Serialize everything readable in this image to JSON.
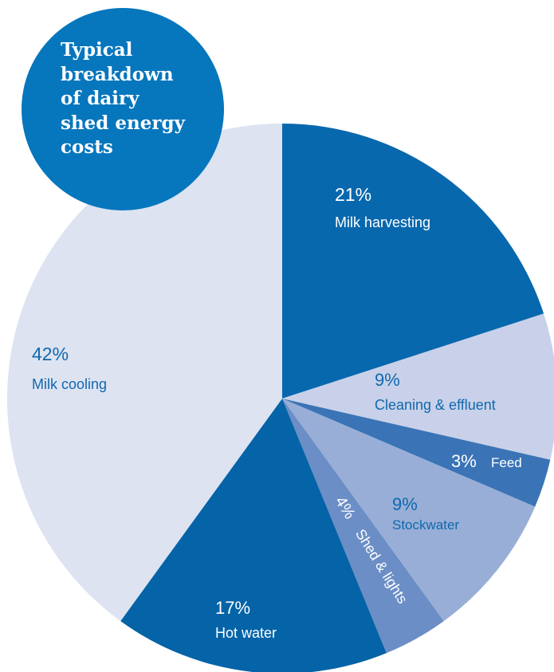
{
  "chart_data": {
    "type": "pie",
    "title": "Typical\nbreakdown\nof dairy\nshed energy\ncosts",
    "slices": [
      {
        "pct": "21%",
        "value": 21,
        "label": "Milk harvesting",
        "color": "#0868ae",
        "text_color": "#ffffff"
      },
      {
        "pct": "9%",
        "value": 9,
        "label": "Cleaning & effluent",
        "color": "#c8d1e9",
        "text_color": "#1168ad"
      },
      {
        "pct": "3%",
        "value": 3,
        "label": "Feed",
        "color": "#3a74b6",
        "text_color": "#ffffff"
      },
      {
        "pct": "9%",
        "value": 9,
        "label": "Stockwater",
        "color": "#98aed6",
        "text_color": "#1168ad"
      },
      {
        "pct": "4%",
        "value": 4,
        "label": "Shed & lights",
        "color": "#6b8ec6",
        "text_color": "#ffffff"
      },
      {
        "pct": "17%",
        "value": 17,
        "label": "Hot water",
        "color": "#0563a7",
        "text_color": "#ffffff"
      },
      {
        "pct": "42%",
        "value": 42,
        "label": "Milk cooling",
        "color": "#dde3f1",
        "text_color": "#1168ad"
      }
    ],
    "badge_color": "#0676bd"
  }
}
